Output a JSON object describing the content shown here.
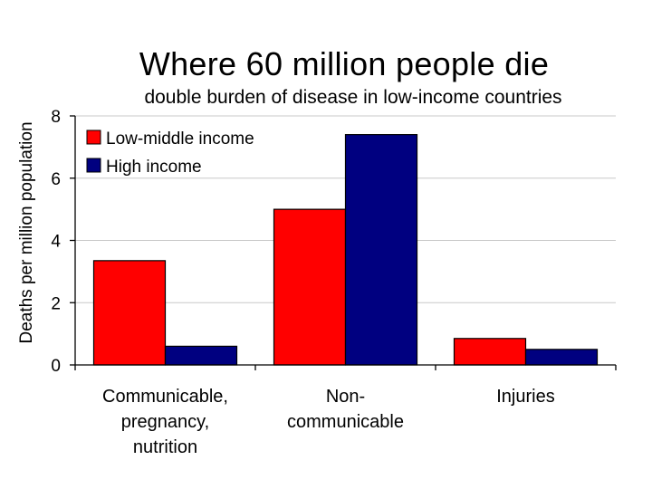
{
  "chart_data": {
    "type": "bar",
    "title": "Where 60 million people die",
    "subtitle": "double burden of disease in low-income countries",
    "xlabel": "",
    "ylabel": "Deaths per million population",
    "ylim": [
      0,
      8
    ],
    "yticks": [
      0,
      2,
      4,
      6,
      8
    ],
    "categories": [
      [
        "Communicable,",
        "pregnancy,",
        "nutrition"
      ],
      [
        "Non-",
        "communicable"
      ],
      [
        "Injuries"
      ]
    ],
    "series": [
      {
        "name": "Low-middle income",
        "color": "#ff0000",
        "values": [
          3.35,
          5.0,
          0.85
        ]
      },
      {
        "name": "High income",
        "color": "#000080",
        "values": [
          0.6,
          7.4,
          0.5
        ]
      }
    ],
    "grid": true,
    "legend_position": "top-left"
  }
}
